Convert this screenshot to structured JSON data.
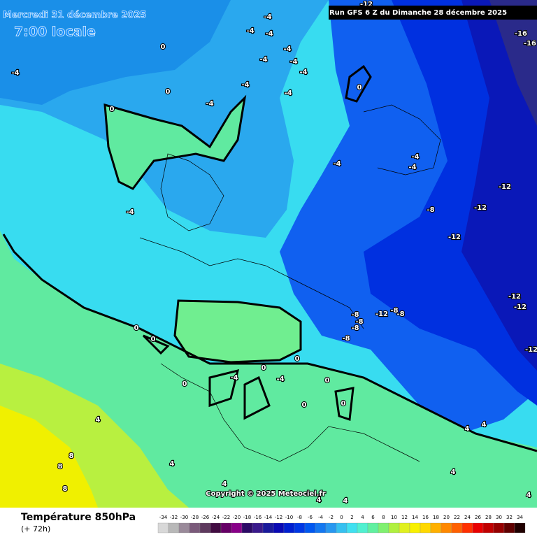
{
  "header": {
    "date": "Mercredi 31 décembre 2025",
    "time": "7:00 locale",
    "run": "Run GFS 6 Z du Dimanche 28 décembre 2025"
  },
  "copyright": "Copyright © 2025 Meteociel.fr",
  "footer": {
    "title": "Température 850hPa",
    "lead": "(+ 72h)"
  },
  "contour_labels": [
    "-4",
    "0",
    "0",
    "0",
    "-4",
    "-4",
    "-4",
    "-4",
    "-4",
    "-4",
    "-4",
    "-4",
    "-4",
    "-4",
    "0",
    "-12",
    "-16",
    "-16",
    "-4",
    "-4",
    "-4",
    "-12",
    "-8",
    "-12",
    "-4",
    "-12",
    "-12",
    "-12",
    "-12",
    "-8",
    "-8",
    "-8",
    "-8",
    "-8",
    "-8",
    "0",
    "0",
    "0",
    "0",
    "0",
    "-4",
    "-4",
    "0",
    "0",
    "0",
    "4",
    "4",
    "4",
    "8",
    "8",
    "8",
    "4",
    "4",
    "4",
    "4",
    "4",
    "4",
    "-12"
  ],
  "colorbar": {
    "labels": [
      -34,
      -32,
      -30,
      -28,
      -26,
      -24,
      -22,
      -20,
      -18,
      -16,
      -14,
      -12,
      -10,
      -8,
      -6,
      -4,
      -2,
      0,
      2,
      4,
      6,
      8,
      10,
      12,
      14,
      16,
      18,
      20,
      22,
      24,
      26,
      28,
      30,
      32,
      34
    ],
    "colors": [
      "#d8d8d8",
      "#b8b8b8",
      "#9a8a9a",
      "#7a5a7a",
      "#5e3a5e",
      "#420c42",
      "#660066",
      "#880088",
      "#2c0a66",
      "#3a1a8c",
      "#1a1a9c",
      "#0a0ab4",
      "#0020d0",
      "#0038e4",
      "#0058f0",
      "#1478f0",
      "#2898f0",
      "#36c0f0",
      "#40e0f0",
      "#50f0d0",
      "#60f0a0",
      "#80f070",
      "#b0f040",
      "#e0f020",
      "#f8f000",
      "#ffd800",
      "#ffb000",
      "#ff8800",
      "#ff6000",
      "#ff3000",
      "#e80000",
      "#c00000",
      "#960000",
      "#600000",
      "#200000"
    ]
  }
}
